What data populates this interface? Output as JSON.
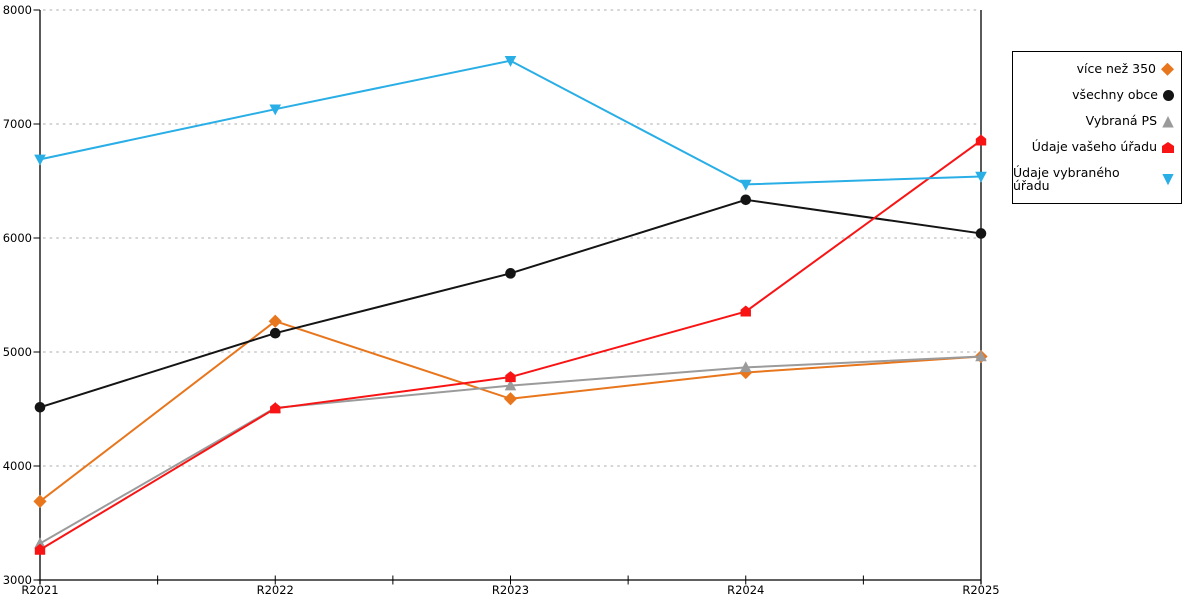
{
  "chart_data": {
    "type": "line",
    "title": "",
    "xlabel": "",
    "ylabel": "",
    "categories": [
      "R2021",
      "R2022",
      "R2023",
      "R2024",
      "R2025"
    ],
    "series": [
      {
        "name": "více než 350",
        "marker": "diamond",
        "color": "#E8761D",
        "values": [
          3690,
          5270,
          4590,
          4820,
          4960
        ]
      },
      {
        "name": "všechny obce",
        "marker": "circle",
        "color": "#141414",
        "values": [
          4515,
          5165,
          5690,
          6335,
          6040
        ]
      },
      {
        "name": "Vybraná PS",
        "marker": "triangle-up",
        "color": "#9B9B9B",
        "values": [
          3320,
          4510,
          4705,
          4865,
          4960
        ]
      },
      {
        "name": "Údaje vašeho úřadu",
        "marker": "pentagon",
        "color": "#F81414",
        "values": [
          3265,
          4505,
          4780,
          5355,
          6855
        ]
      },
      {
        "name": "Údaje vybraného úřadu",
        "marker": "triangle-down",
        "color": "#29AEE6",
        "values": [
          6690,
          7130,
          7555,
          6470,
          6540
        ]
      }
    ],
    "ylim": [
      3000,
      8000
    ],
    "yticks": [
      3000,
      4000,
      5000,
      6000,
      7000,
      8000
    ],
    "ytick_interval": 1000,
    "grid": "horizontal-dotted",
    "grid_color": "#ADADAD",
    "axis_color": "#000000",
    "legend_position": "right"
  }
}
